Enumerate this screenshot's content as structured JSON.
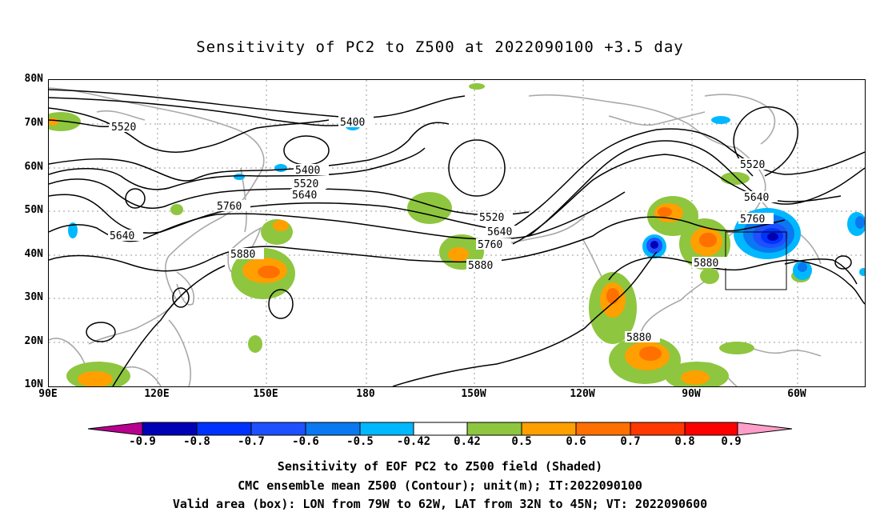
{
  "title": "Sensitivity of PC2 to Z500 at 2022090100 +3.5 day",
  "lat_labels": [
    "80N",
    "70N",
    "60N",
    "50N",
    "40N",
    "30N",
    "20N",
    "10N"
  ],
  "lon_labels": [
    "90E",
    "120E",
    "150E",
    "180",
    "150W",
    "120W",
    "90W",
    "60W"
  ],
  "contour_labels": [
    "5520",
    "5400",
    "5400",
    "5520",
    "5640",
    "5760",
    "5640",
    "5880",
    "5520",
    "5640",
    "5760",
    "5880",
    "5520",
    "5640",
    "5760",
    "5880",
    "5880"
  ],
  "colorbar": {
    "labels": [
      "-0.9",
      "-0.8",
      "-0.7",
      "-0.6",
      "-0.5",
      "-0.42",
      "0.42",
      "0.5",
      "0.6",
      "0.7",
      "0.8",
      "0.9"
    ],
    "colors": [
      "#b8008f",
      "#0000b4",
      "#0032ff",
      "#1e50ff",
      "#0a78f0",
      "#00b8ff",
      "#ffffff",
      "#8ec63f",
      "#ffa000",
      "#ff7000",
      "#ff3800",
      "#ff0000",
      "#ff9ec8"
    ]
  },
  "footer": {
    "line1": "Sensitivity of EOF PC2 to Z500 field (Shaded)",
    "line2": "CMC ensemble mean Z500 (Contour); unit(m); IT:2022090100",
    "line3": "Valid area (box): LON from 79W to 62W, LAT from 32N to 45N; VT: 2022090600"
  }
}
